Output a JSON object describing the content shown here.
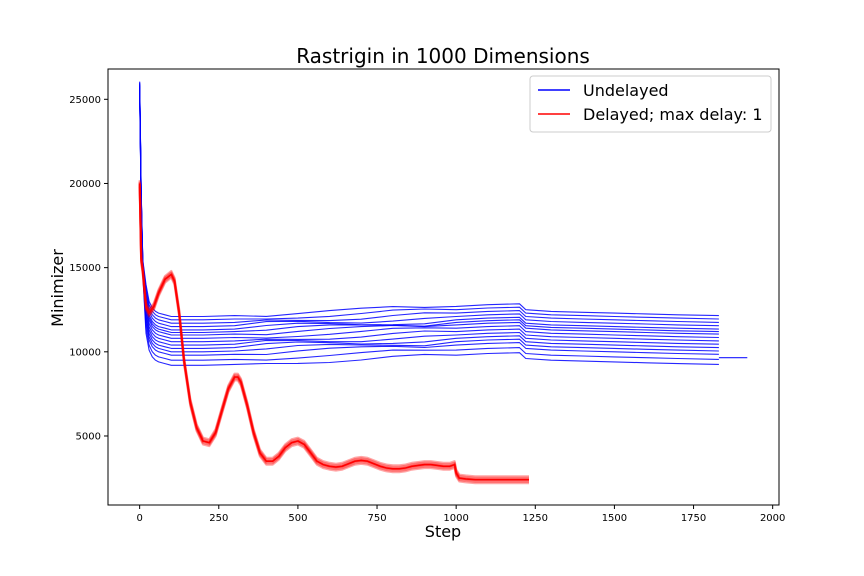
{
  "chart_data": {
    "type": "line",
    "title": "Rastrigin in 1000 Dimensions",
    "xlabel": "Step",
    "ylabel": "Minimizer",
    "xlim": [
      -100,
      2020
    ],
    "ylim": [
      900,
      26800
    ],
    "xticks": [
      0,
      250,
      500,
      750,
      1000,
      1250,
      1500,
      1750,
      2000
    ],
    "yticks": [
      5000,
      10000,
      15000,
      20000,
      25000
    ],
    "legend_position": "top-right",
    "grid": false,
    "colors": {
      "undelayed": "#0000ff",
      "delayed": "#ff0000"
    },
    "series": [
      {
        "name": "Undelayed",
        "color": "#0000ff",
        "runs": 15,
        "run_offsets": [
          -1400,
          -1100,
          -800,
          -600,
          -400,
          -200,
          0,
          200,
          400,
          550,
          700,
          900,
          1100,
          1300,
          1500
        ],
        "x": [
          0,
          5,
          10,
          20,
          30,
          40,
          50,
          60,
          80,
          100,
          200,
          300,
          400,
          500,
          600,
          700,
          800,
          900,
          1000,
          1100,
          1200,
          1220,
          1300,
          1400,
          1500,
          1600,
          1700,
          1830
        ],
        "values": [
          25600,
          19000,
          15000,
          12500,
          11500,
          11100,
          10900,
          10800,
          10700,
          10600,
          10600,
          10650,
          10750,
          10850,
          10900,
          10950,
          11050,
          11100,
          11200,
          11300,
          11350,
          11000,
          10900,
          10850,
          10800,
          10750,
          10700,
          10650
        ]
      },
      {
        "name": "Undelayed tail",
        "color": "#0000ff",
        "x": [
          1830,
          1920
        ],
        "values": [
          9650,
          9650
        ]
      },
      {
        "name": "Delayed; max delay: 1",
        "color": "#ff0000",
        "x": [
          0,
          5,
          10,
          20,
          30,
          45,
          60,
          80,
          100,
          110,
          125,
          140,
          160,
          180,
          200,
          220,
          240,
          260,
          280,
          300,
          310,
          320,
          340,
          360,
          380,
          400,
          420,
          440,
          460,
          480,
          500,
          520,
          540,
          560,
          580,
          600,
          620,
          640,
          660,
          680,
          700,
          720,
          740,
          760,
          780,
          800,
          820,
          840,
          860,
          880,
          900,
          920,
          940,
          960,
          980,
          995,
          1000,
          1010,
          1030,
          1060,
          1100,
          1150,
          1200,
          1230
        ],
        "values": [
          20000,
          15500,
          14800,
          12700,
          12300,
          12700,
          13500,
          14300,
          14600,
          14200,
          12300,
          9500,
          7000,
          5500,
          4700,
          4600,
          5200,
          6500,
          7800,
          8500,
          8500,
          8200,
          6800,
          5200,
          4000,
          3500,
          3500,
          3800,
          4300,
          4600,
          4700,
          4500,
          4000,
          3500,
          3300,
          3200,
          3150,
          3200,
          3350,
          3500,
          3550,
          3500,
          3350,
          3200,
          3100,
          3050,
          3050,
          3100,
          3200,
          3250,
          3300,
          3300,
          3250,
          3200,
          3200,
          3300,
          2800,
          2500,
          2450,
          2400,
          2400,
          2400,
          2400,
          2400
        ]
      }
    ],
    "legend": [
      {
        "label": "Undelayed",
        "color": "#0000ff"
      },
      {
        "label": "Delayed; max delay: 1",
        "color": "#ff0000"
      }
    ]
  }
}
